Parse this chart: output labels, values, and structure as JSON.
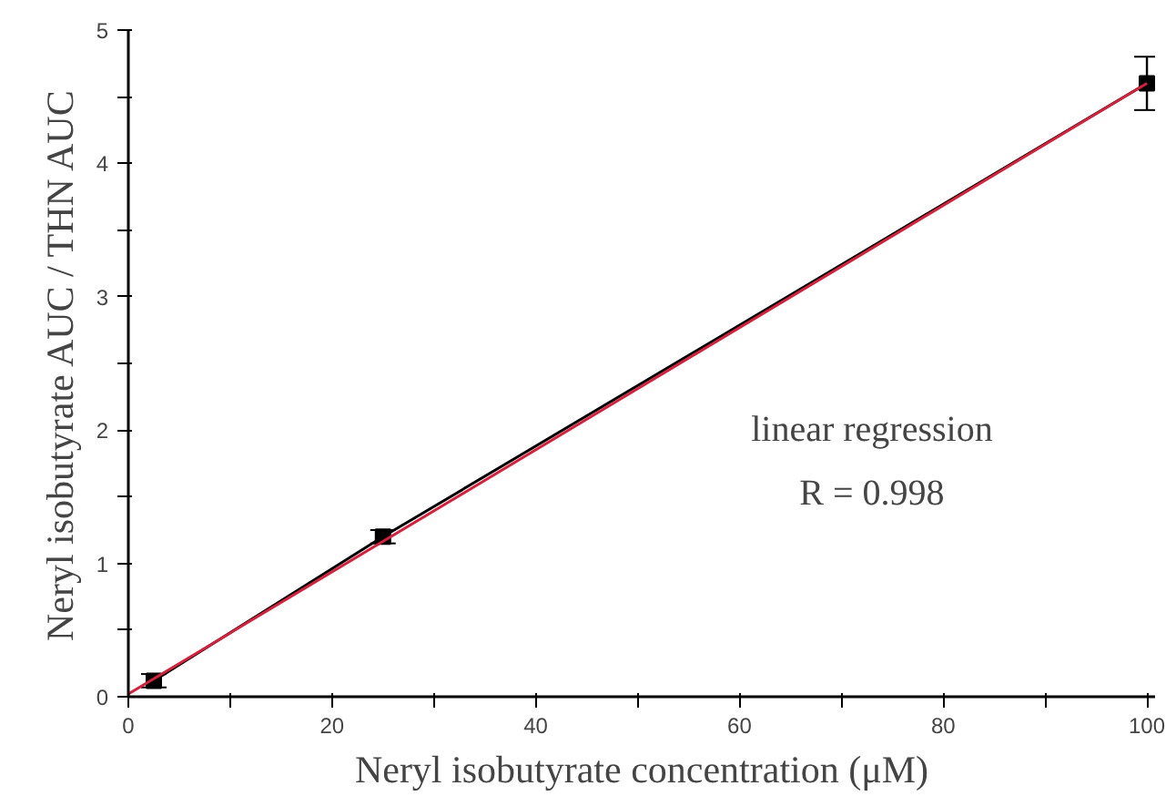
{
  "chart_data": {
    "type": "line",
    "xlabel": "Neryl isobutyrate concentration (μM)",
    "ylabel": "Neryl isobutyrate AUC / THN AUC",
    "series": [
      {
        "color": "#000000",
        "x": [
          2.5,
          25,
          100
        ],
        "values": [
          0.12,
          1.2,
          4.6
        ],
        "errors": [
          0.05,
          0.05,
          0.2
        ],
        "marker": "square"
      },
      {
        "color": "#d6203c",
        "x": [
          0,
          100
        ],
        "values": [
          0.02,
          4.6
        ],
        "marker": "none"
      }
    ],
    "xlim": [
      0,
      100.8
    ],
    "ylim": [
      0,
      5
    ],
    "xticks": [
      0,
      {
        "value": 10,
        "label": null
      },
      20,
      {
        "value": 30,
        "label": null
      },
      40,
      {
        "value": 50,
        "label": null
      },
      60,
      {
        "value": 70,
        "label": null
      },
      80,
      {
        "value": 90,
        "label": null
      },
      100
    ],
    "yticks": [
      0,
      {
        "value": 0.5,
        "label": null
      },
      1,
      {
        "value": 1.5,
        "label": null
      },
      2,
      {
        "value": 2.5,
        "label": null
      },
      3,
      {
        "value": 3.5,
        "label": null
      },
      4,
      {
        "value": 4.5,
        "label": null
      },
      5
    ],
    "annotations": [
      "linear regression",
      "R = 0.998"
    ],
    "grid": false
  }
}
